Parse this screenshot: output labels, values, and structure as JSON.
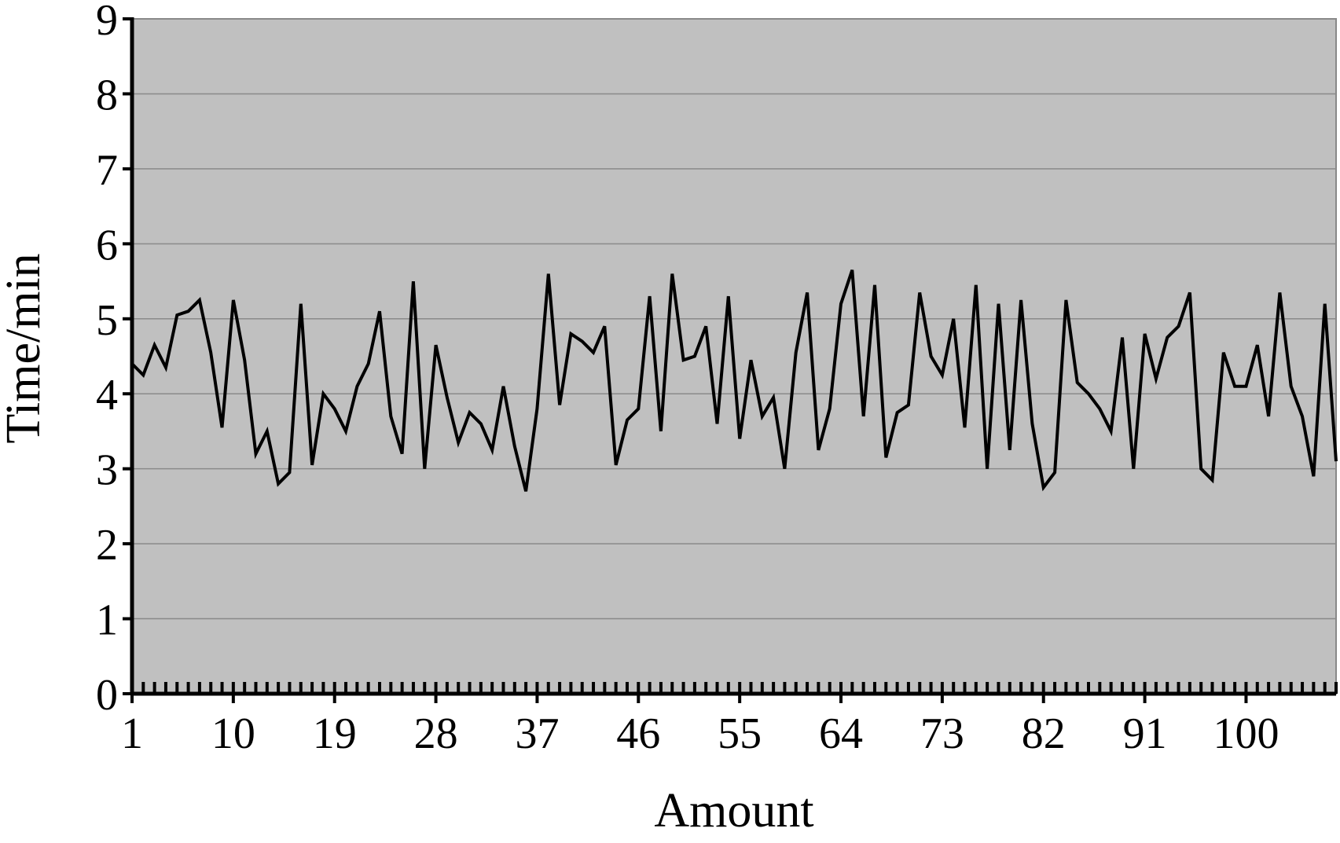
{
  "chart_data": {
    "type": "line",
    "title": "",
    "xlabel": "Amount",
    "ylabel": "Time/min",
    "xlim": [
      1,
      108
    ],
    "ylim": [
      0,
      9
    ],
    "yticks": [
      0,
      1,
      2,
      3,
      4,
      5,
      6,
      7,
      8,
      9
    ],
    "xtick_labels": [
      1,
      10,
      19,
      28,
      37,
      46,
      55,
      64,
      73,
      82,
      91,
      100
    ],
    "grid": "horizontal",
    "colors": {
      "plot_background": "#c0c0c0",
      "line": "#000000",
      "grid": "#8a8a8a"
    },
    "series": [
      {
        "x": [
          1,
          2,
          3,
          4,
          5,
          6,
          7,
          8,
          9,
          10,
          11,
          12,
          13,
          14,
          15,
          16,
          17,
          18,
          19,
          20,
          21,
          22,
          23,
          24,
          25,
          26,
          27,
          28,
          29,
          30,
          31,
          32,
          33,
          34,
          35,
          36,
          37,
          38,
          39,
          40,
          41,
          42,
          43,
          44,
          45,
          46,
          47,
          48,
          49,
          50,
          51,
          52,
          53,
          54,
          55,
          56,
          57,
          58,
          59,
          60,
          61,
          62,
          63,
          64,
          65,
          66,
          67,
          68,
          69,
          70,
          71,
          72,
          73,
          74,
          75,
          76,
          77,
          78,
          79,
          80,
          81,
          82,
          83,
          84,
          85,
          86,
          87,
          88,
          89,
          90,
          91,
          92,
          93,
          94,
          95,
          96,
          97,
          98,
          99,
          100,
          101,
          102,
          103,
          104,
          105,
          106,
          107,
          108
        ],
        "values": [
          4.4,
          4.25,
          4.65,
          4.35,
          5.05,
          5.1,
          5.25,
          4.55,
          3.55,
          5.25,
          4.45,
          3.2,
          3.5,
          2.8,
          2.95,
          5.2,
          3.05,
          4.0,
          3.8,
          3.5,
          4.1,
          4.4,
          5.1,
          3.7,
          3.2,
          5.5,
          3.0,
          4.65,
          3.95,
          3.35,
          3.75,
          3.6,
          3.25,
          4.1,
          3.3,
          2.7,
          3.8,
          5.6,
          3.85,
          4.8,
          4.7,
          4.55,
          4.9,
          3.05,
          3.65,
          3.8,
          5.3,
          3.5,
          5.6,
          4.45,
          4.5,
          4.9,
          3.6,
          5.3,
          3.4,
          4.45,
          3.7,
          3.95,
          3.0,
          4.55,
          5.35,
          3.25,
          3.8,
          5.2,
          5.65,
          3.7,
          5.45,
          3.15,
          3.75,
          3.85,
          5.35,
          4.5,
          4.25,
          5.0,
          3.55,
          5.45,
          3.0,
          5.2,
          3.25,
          5.25,
          3.6,
          2.75,
          2.95,
          5.25,
          4.15,
          4.0,
          3.8,
          3.5,
          4.75,
          3.0,
          4.8,
          4.2,
          4.75,
          4.9,
          5.35,
          3.0,
          2.85,
          4.55,
          4.1,
          4.1,
          4.65,
          3.7,
          5.35,
          4.1,
          3.7,
          2.9,
          5.2,
          3.1
        ]
      }
    ]
  }
}
